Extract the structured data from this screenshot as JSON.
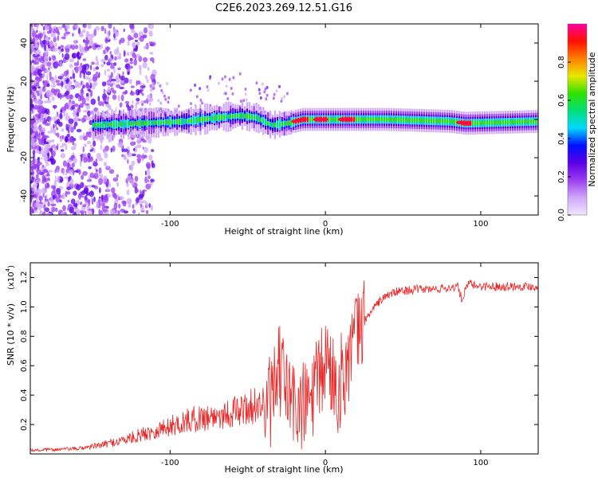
{
  "title": "C2E6.2023.269.12.51.G16",
  "chart_data": [
    {
      "type": "heatmap",
      "title": "C2E6.2023.269.12.51.G16",
      "xlabel": "Height of straight line (km)",
      "ylabel": "Frequency (Hz)",
      "xlim": [
        -190,
        137
      ],
      "ylim": [
        -50,
        50
      ],
      "xticks": [
        -100,
        0,
        100
      ],
      "xtick_labels": [
        "-100",
        "0",
        "100"
      ],
      "yticks": [
        -40,
        -20,
        0,
        20,
        40
      ],
      "ytick_labels": [
        "-40",
        "-20",
        "0",
        "20",
        "40"
      ],
      "colorbar": {
        "label": "Normalized spectral amplitude",
        "range": [
          0.0,
          1.0
        ],
        "ticks": [
          0.0,
          0.2,
          0.4,
          0.6,
          0.8
        ],
        "tick_labels": [
          "0.0",
          "0.2",
          "0.4",
          "0.6",
          "0.8"
        ],
        "colors": [
          "#f0e6ff",
          "#d0a8f8",
          "#9a3ef0",
          "#5a00e6",
          "#0010ff",
          "#00d8ff",
          "#00e07a",
          "#30e000",
          "#e8e800",
          "#ff8000",
          "#ff1000",
          "#ff00a0"
        ]
      },
      "ridge_center_hz": [
        {
          "x": -150,
          "y": -3
        },
        {
          "x": -120,
          "y": -2
        },
        {
          "x": -90,
          "y": -1
        },
        {
          "x": -70,
          "y": 1
        },
        {
          "x": -55,
          "y": 2
        },
        {
          "x": -45,
          "y": 1
        },
        {
          "x": -35,
          "y": -3
        },
        {
          "x": -25,
          "y": -2
        },
        {
          "x": -15,
          "y": 0
        },
        {
          "x": 0,
          "y": 0
        },
        {
          "x": 40,
          "y": 0
        },
        {
          "x": 80,
          "y": -1
        },
        {
          "x": 90,
          "y": -2
        },
        {
          "x": 137,
          "y": -1
        }
      ],
      "peak_amplitude_regions_km": [
        [
          -20,
          -12
        ],
        [
          -6,
          0
        ],
        [
          10,
          18
        ],
        [
          86,
          94
        ]
      ]
    },
    {
      "type": "line",
      "xlabel": "Height of straight line (km)",
      "ylabel": "SNR (10 * v/v)",
      "y_multiplier_label": "(x10",
      "y_multiplier_exp": "4",
      "y_multiplier_close": ")",
      "xlim": [
        -190,
        137
      ],
      "ylim": [
        0.0,
        1.3
      ],
      "xticks": [
        -100,
        0,
        100
      ],
      "xtick_labels": [
        "-100",
        "0",
        "100"
      ],
      "yticks": [
        0.2,
        0.4,
        0.6,
        0.8,
        1.0,
        1.2
      ],
      "ytick_labels": [
        "0.2",
        "0.4",
        "0.6",
        "0.8",
        "1.0",
        "1.2"
      ],
      "series": [
        {
          "name": "SNR",
          "color": "#e82828",
          "x": [
            -190,
            -160,
            -145,
            -130,
            -115,
            -100,
            -85,
            -70,
            -55,
            -45,
            -38,
            -33,
            -30,
            -28,
            -22,
            -15,
            -8,
            -3,
            0,
            3,
            8,
            12,
            18,
            25,
            30,
            35,
            40,
            45,
            50,
            60,
            70,
            80,
            85,
            88,
            92,
            95,
            100,
            110,
            120,
            137
          ],
          "y": [
            0.02,
            0.03,
            0.05,
            0.08,
            0.12,
            0.16,
            0.2,
            0.22,
            0.25,
            0.28,
            0.3,
            0.4,
            0.55,
            0.55,
            0.35,
            0.3,
            0.4,
            0.52,
            0.65,
            0.58,
            0.45,
            0.55,
            0.75,
            0.9,
            0.98,
            1.04,
            1.08,
            1.1,
            1.11,
            1.12,
            1.12,
            1.13,
            1.14,
            1.05,
            1.16,
            1.15,
            1.14,
            1.14,
            1.14,
            1.14
          ]
        }
      ]
    }
  ]
}
